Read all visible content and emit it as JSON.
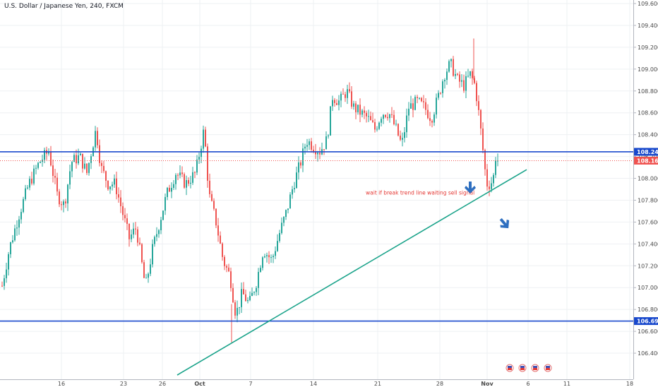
{
  "header": {
    "title": "U.S. Dollar / Japanese Yen, 240, FXCM"
  },
  "colors": {
    "up": "#26a69a",
    "down": "#ef5350",
    "level_line": "#1848cc",
    "trend_line": "#1aa38a",
    "annotation_text": "#e53935",
    "arrow": "#2e6fc0",
    "grid": "#eef0f3",
    "axis_text": "#4a4a4a"
  },
  "chart_data": {
    "type": "candlestick",
    "ylim": [
      106.2,
      109.6
    ],
    "y_ticks": [
      "109.600",
      "109.400",
      "109.200",
      "109.000",
      "108.800",
      "108.600",
      "108.400",
      "108.200",
      "108.000",
      "107.800",
      "107.600",
      "107.400",
      "107.200",
      "107.000",
      "106.800",
      "106.600",
      "106.400"
    ],
    "x_ticks": [
      "16",
      "23",
      "26",
      "Oct",
      "7",
      "14",
      "21",
      "28",
      "Nov",
      "6",
      "11",
      "18"
    ],
    "grid": true,
    "price_labels": [
      {
        "text": "108.243",
        "value": 108.243,
        "kind": "level"
      },
      {
        "text": "108.162",
        "value": 108.162,
        "kind": "last"
      },
      {
        "text": "106.694",
        "value": 106.694,
        "kind": "level"
      }
    ],
    "horizontal_lines": [
      {
        "value": 108.243,
        "style": "solid"
      },
      {
        "value": 108.162,
        "style": "dotted"
      },
      {
        "value": 106.694,
        "style": "solid"
      }
    ],
    "trend_line": {
      "from": {
        "x_label": "24",
        "y": 106.2
      },
      "to": {
        "x_label": "Nov 5",
        "y": 108.08
      }
    },
    "path": [
      [
        0,
        106.95
      ],
      [
        12,
        107.35
      ],
      [
        25,
        107.65
      ],
      [
        40,
        107.95
      ],
      [
        55,
        108.15
      ],
      [
        68,
        108.25
      ],
      [
        80,
        107.85
      ],
      [
        90,
        107.75
      ],
      [
        100,
        108.15
      ],
      [
        112,
        108.2
      ],
      [
        122,
        108.05
      ],
      [
        135,
        108.45
      ],
      [
        142,
        108.1
      ],
      [
        152,
        107.95
      ],
      [
        162,
        107.95
      ],
      [
        172,
        107.7
      ],
      [
        182,
        107.45
      ],
      [
        192,
        107.55
      ],
      [
        205,
        107.0
      ],
      [
        215,
        107.35
      ],
      [
        225,
        107.6
      ],
      [
        235,
        107.85
      ],
      [
        248,
        108.05
      ],
      [
        262,
        107.95
      ],
      [
        276,
        108.05
      ],
      [
        288,
        108.45
      ],
      [
        295,
        107.85
      ],
      [
        305,
        107.6
      ],
      [
        315,
        107.25
      ],
      [
        325,
        107.1
      ],
      [
        333,
        106.75
      ],
      [
        342,
        106.95
      ],
      [
        352,
        106.85
      ],
      [
        362,
        107.05
      ],
      [
        372,
        107.35
      ],
      [
        384,
        107.25
      ],
      [
        395,
        107.5
      ],
      [
        405,
        107.7
      ],
      [
        415,
        107.95
      ],
      [
        425,
        108.15
      ],
      [
        433,
        108.35
      ],
      [
        442,
        108.3
      ],
      [
        452,
        108.25
      ],
      [
        462,
        108.35
      ],
      [
        470,
        108.75
      ],
      [
        480,
        108.7
      ],
      [
        490,
        108.8
      ],
      [
        500,
        108.65
      ],
      [
        510,
        108.6
      ],
      [
        520,
        108.55
      ],
      [
        530,
        108.45
      ],
      [
        540,
        108.6
      ],
      [
        550,
        108.6
      ],
      [
        560,
        108.45
      ],
      [
        568,
        108.3
      ],
      [
        578,
        108.65
      ],
      [
        590,
        108.7
      ],
      [
        600,
        108.65
      ],
      [
        610,
        108.55
      ],
      [
        620,
        108.75
      ],
      [
        628,
        108.95
      ],
      [
        637,
        109.05
      ],
      [
        647,
        108.9
      ],
      [
        656,
        108.85
      ],
      [
        665,
        108.95
      ],
      [
        672,
        108.85
      ],
      [
        678,
        108.55
      ],
      [
        684,
        108.2
      ],
      [
        688,
        107.95
      ],
      [
        694,
        107.95
      ],
      [
        700,
        108.05
      ],
      [
        705,
        108.16
      ]
    ],
    "annotations": [
      {
        "text": "wait if break trend line waiting sell signal",
        "x": 518,
        "value": 107.85
      }
    ]
  }
}
